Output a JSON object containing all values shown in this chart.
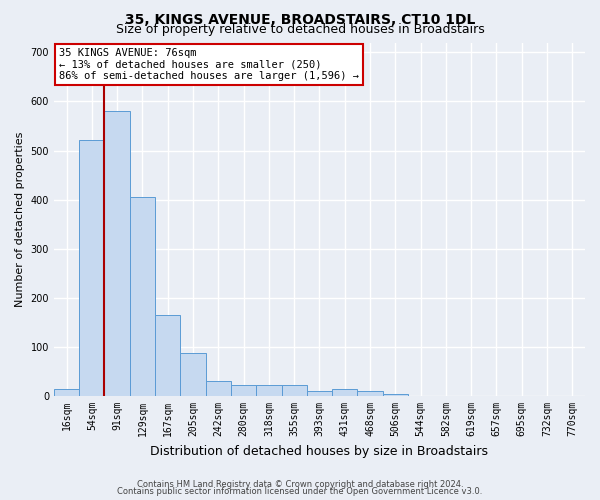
{
  "title_line1": "35, KINGS AVENUE, BROADSTAIRS, CT10 1DL",
  "title_line2": "Size of property relative to detached houses in Broadstairs",
  "xlabel": "Distribution of detached houses by size in Broadstairs",
  "ylabel": "Number of detached properties",
  "categories": [
    "16sqm",
    "54sqm",
    "91sqm",
    "129sqm",
    "167sqm",
    "205sqm",
    "242sqm",
    "280sqm",
    "318sqm",
    "355sqm",
    "393sqm",
    "431sqm",
    "468sqm",
    "506sqm",
    "544sqm",
    "582sqm",
    "619sqm",
    "657sqm",
    "695sqm",
    "732sqm",
    "770sqm"
  ],
  "values": [
    15,
    522,
    580,
    405,
    165,
    88,
    30,
    22,
    22,
    22,
    10,
    14,
    10,
    5,
    0,
    0,
    0,
    0,
    0,
    0,
    0
  ],
  "bar_color": "#c6d9f0",
  "bar_edge_color": "#5b9bd5",
  "vline_color": "#aa0000",
  "annotation_title": "35 KINGS AVENUE: 76sqm",
  "annotation_line1": "← 13% of detached houses are smaller (250)",
  "annotation_line2": "86% of semi-detached houses are larger (1,596) →",
  "annotation_box_facecolor": "#ffffff",
  "annotation_box_edgecolor": "#cc0000",
  "ylim": [
    0,
    720
  ],
  "yticks": [
    0,
    100,
    200,
    300,
    400,
    500,
    600,
    700
  ],
  "footer_line1": "Contains HM Land Registry data © Crown copyright and database right 2024.",
  "footer_line2": "Contains public sector information licensed under the Open Government Licence v3.0.",
  "bg_color": "#eaeef5",
  "plot_bg_color": "#eaeef5",
  "grid_color": "#ffffff",
  "title_fontsize": 10,
  "subtitle_fontsize": 9,
  "tick_fontsize": 7,
  "ylabel_fontsize": 8,
  "xlabel_fontsize": 9,
  "annot_fontsize": 7.5,
  "footer_fontsize": 6
}
